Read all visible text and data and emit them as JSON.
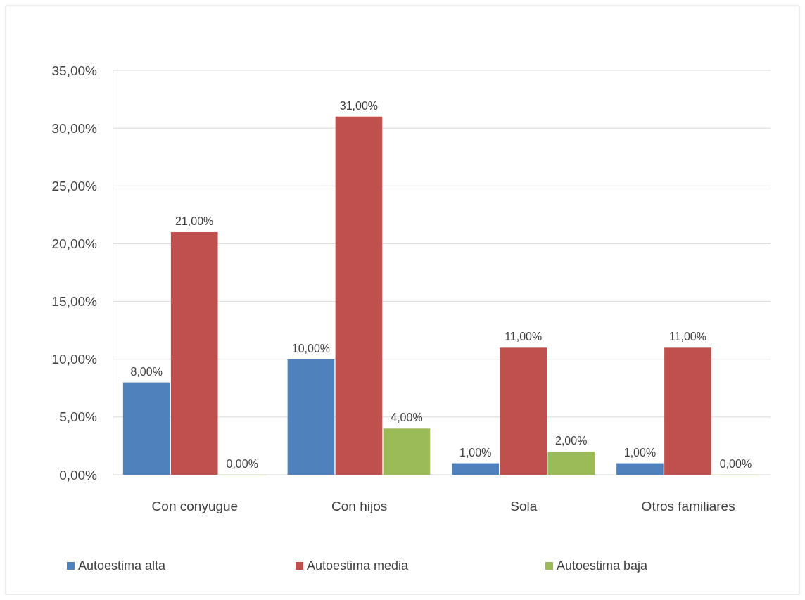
{
  "chart_data": {
    "type": "bar",
    "categories": [
      "Con conyugue",
      "Con hijos",
      "Sola",
      "Otros familiares"
    ],
    "series": [
      {
        "name": "Autoestima alta",
        "color": "#4f81bd",
        "values": [
          8,
          10,
          1,
          1
        ],
        "value_labels": [
          "8,00%",
          "10,00%",
          "1,00%",
          "1,00%"
        ]
      },
      {
        "name": "Autoestima media",
        "color": "#c0504d",
        "values": [
          21,
          31,
          11,
          11
        ],
        "value_labels": [
          "21,00%",
          "31,00%",
          "11,00%",
          "11,00%"
        ]
      },
      {
        "name": "Autoestima baja",
        "color": "#9bbb59",
        "values": [
          0,
          4,
          2,
          0
        ],
        "value_labels": [
          "0,00%",
          "4,00%",
          "2,00%",
          "0,00%"
        ]
      }
    ],
    "ylim": [
      0,
      35
    ],
    "yticks": [
      {
        "value": 0,
        "label": "0,00%"
      },
      {
        "value": 5,
        "label": "5,00%"
      },
      {
        "value": 10,
        "label": "10,00%"
      },
      {
        "value": 15,
        "label": "15,00%"
      },
      {
        "value": 20,
        "label": "20,00%"
      },
      {
        "value": 25,
        "label": "25,00%"
      },
      {
        "value": 30,
        "label": "30,00%"
      },
      {
        "value": 35,
        "label": "35,00%"
      }
    ],
    "grid": "y",
    "legend": "bottom"
  }
}
